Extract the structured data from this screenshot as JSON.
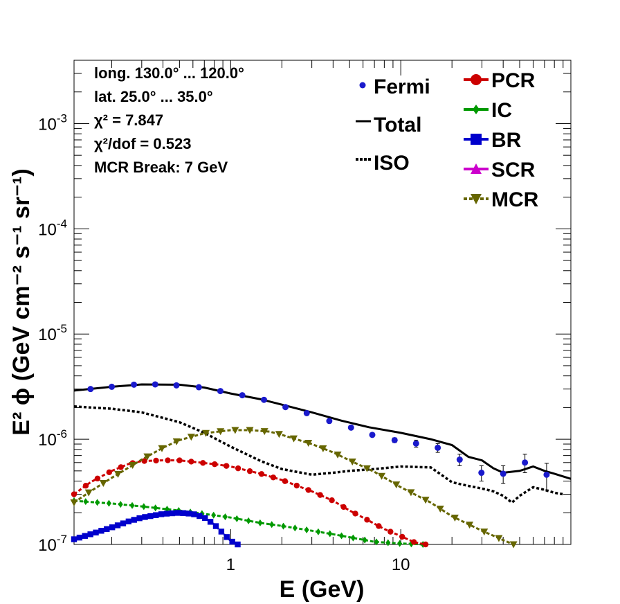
{
  "chart_data": {
    "type": "scatter",
    "x_scale": "log",
    "y_scale": "log",
    "xlim": [
      0.12,
      100
    ],
    "ylim": [
      1e-07,
      0.004
    ],
    "xlabel": "E (GeV)",
    "ylabel": "E² ϕ (GeV cm⁻² s⁻¹ sr⁻¹)",
    "x_tick_labels": [
      {
        "value": 1,
        "label": "1"
      },
      {
        "value": 10,
        "label": "10"
      }
    ],
    "y_tick_labels": [
      {
        "value": 1e-07,
        "base": "10",
        "exp": "-7"
      },
      {
        "value": 1e-06,
        "base": "10",
        "exp": "-6"
      },
      {
        "value": 1e-05,
        "base": "10",
        "exp": "-5"
      },
      {
        "value": 0.0001,
        "base": "10",
        "exp": "-4"
      },
      {
        "value": 0.001,
        "base": "10",
        "exp": "-3"
      }
    ],
    "info_lines": [
      "long. 130.0° ... 120.0°",
      "lat. 25.0° ... 35.0°",
      "χ² = 7.847",
      "χ²/dof = 0.523",
      "MCR Break:  7 GeV"
    ],
    "legend_left": [
      {
        "label": "Fermi",
        "style": "marker"
      },
      {
        "label": "Total",
        "style": "solid"
      },
      {
        "label": "ISO",
        "style": "dotted"
      }
    ],
    "legend_right": [
      {
        "label": "PCR",
        "color": "#cc0000",
        "marker": "circle"
      },
      {
        "label": "IC",
        "color": "#009900",
        "marker": "diamond"
      },
      {
        "label": "BR",
        "color": "#0000cc",
        "marker": "square"
      },
      {
        "label": "SCR",
        "color": "#cc00cc",
        "marker": "triangle-up"
      },
      {
        "label": "MCR",
        "color": "#666600",
        "marker": "triangle-down"
      }
    ],
    "colors": {
      "fermi": "#1a1acc",
      "total": "#000000",
      "iso": "#000000",
      "pcr": "#cc0000",
      "ic": "#009900",
      "br": "#0000cc",
      "mcr": "#666600"
    },
    "fermi": {
      "x": [
        0.15,
        0.2,
        0.27,
        0.36,
        0.48,
        0.65,
        0.87,
        1.17,
        1.57,
        2.1,
        2.8,
        3.8,
        5.1,
        6.8,
        9.2,
        12.3,
        16.5,
        22.2,
        29.8,
        40,
        53.7,
        72
      ],
      "y": [
        3e-06,
        3.15e-06,
        3.3e-06,
        3.32e-06,
        3.25e-06,
        3.12e-06,
        2.87e-06,
        2.62e-06,
        2.37e-06,
        2.02e-06,
        1.77e-06,
        1.49e-06,
        1.29e-06,
        1.1e-06,
        9.8e-07,
        9.1e-07,
        8.3e-07,
        6.4e-07,
        4.8e-07,
        4.7e-07,
        6e-07,
        4.6e-07
      ],
      "err": [
        6e-08,
        6e-08,
        6e-08,
        6e-08,
        6e-08,
        6e-08,
        5e-08,
        5e-08,
        5e-08,
        4e-08,
        4e-08,
        4e-08,
        4e-08,
        4e-08,
        5e-08,
        7e-08,
        8e-08,
        8e-08,
        8e-08,
        9e-08,
        1.2e-07,
        1.3e-07
      ]
    },
    "series": [
      {
        "key": "total",
        "style": "solid",
        "x": [
          0.12,
          0.2,
          0.3,
          0.5,
          0.7,
          1.0,
          1.5,
          2.0,
          3.0,
          4.5,
          6.5,
          10,
          15,
          20,
          25,
          30,
          35,
          40,
          50,
          60,
          70,
          80,
          100
        ],
        "y": [
          2.9e-06,
          3.15e-06,
          3.32e-06,
          3.3e-06,
          3.1e-06,
          2.72e-06,
          2.4e-06,
          2.13e-06,
          1.8e-06,
          1.5e-06,
          1.3e-06,
          1.15e-06,
          1e-06,
          8.8e-07,
          6.8e-07,
          6.3e-07,
          5.3e-07,
          4.8e-07,
          5e-07,
          5.5e-07,
          5e-07,
          4.7e-07,
          4.2e-07
        ]
      },
      {
        "key": "iso",
        "style": "dotted",
        "x": [
          0.12,
          0.2,
          0.3,
          0.5,
          0.7,
          1.0,
          1.5,
          2.0,
          3.0,
          4.0,
          5.0,
          7.0,
          10,
          15,
          20,
          25,
          30,
          35,
          40,
          45,
          50,
          60,
          70,
          80,
          90
        ],
        "y": [
          2.05e-06,
          1.95e-06,
          1.8e-06,
          1.45e-06,
          1.15e-06,
          8.5e-07,
          6.2e-07,
          5.2e-07,
          4.6e-07,
          4.8e-07,
          5e-07,
          5.2e-07,
          5.5e-07,
          5.4e-07,
          3.9e-07,
          3.6e-07,
          3.4e-07,
          3.2e-07,
          2.9e-07,
          2.5e-07,
          2.9e-07,
          3.5e-07,
          3.3e-07,
          3.1e-07,
          3e-07
        ]
      },
      {
        "key": "pcr",
        "style": "marked",
        "marker": "circle",
        "x": [
          0.12,
          0.15,
          0.2,
          0.25,
          0.3,
          0.4,
          0.5,
          0.6,
          0.8,
          1.0,
          1.5,
          2.0,
          3.0,
          4.0,
          5.0,
          6.0,
          8.0,
          10,
          12,
          14
        ],
        "y": [
          3e-07,
          3.9e-07,
          5e-07,
          5.8e-07,
          6.2e-07,
          6.3e-07,
          6.3e-07,
          6.1e-07,
          5.8e-07,
          5.5e-07,
          4.7e-07,
          4.1e-07,
          3.2e-07,
          2.6e-07,
          2.1e-07,
          1.8e-07,
          1.4e-07,
          1.2e-07,
          1.05e-07,
          1e-07
        ]
      },
      {
        "key": "ic",
        "style": "marked",
        "marker": "diamond",
        "x": [
          0.12,
          0.2,
          0.3,
          0.5,
          0.7,
          1.0,
          1.5,
          2.0,
          3.0,
          4.0,
          5.0,
          7.0,
          10,
          12,
          13.5
        ],
        "y": [
          2.6e-07,
          2.45e-07,
          2.3e-07,
          2.1e-07,
          1.95e-07,
          1.8e-07,
          1.6e-07,
          1.5e-07,
          1.35e-07,
          1.25e-07,
          1.17e-07,
          1.06e-07,
          1.02e-07,
          1.01e-07,
          1e-07
        ]
      },
      {
        "key": "br",
        "style": "marked",
        "marker": "square",
        "x": [
          0.12,
          0.15,
          0.2,
          0.25,
          0.3,
          0.4,
          0.5,
          0.6,
          0.7,
          0.8,
          0.9,
          1.0,
          1.1
        ],
        "y": [
          1.12e-07,
          1.25e-07,
          1.45e-07,
          1.65e-07,
          1.8e-07,
          1.95e-07,
          2e-07,
          1.95e-07,
          1.8e-07,
          1.55e-07,
          1.28e-07,
          1.08e-07,
          1e-07
        ]
      },
      {
        "key": "mcr",
        "style": "marked",
        "marker": "triangle-down",
        "x": [
          0.12,
          0.15,
          0.2,
          0.3,
          0.4,
          0.5,
          0.7,
          1.0,
          1.3,
          1.7,
          2.0,
          3.0,
          4.0,
          5.0,
          7.0,
          10,
          15,
          20,
          30,
          40,
          46
        ],
        "y": [
          2.5e-07,
          3.2e-07,
          4.3e-07,
          6.4e-07,
          8.3e-07,
          9.8e-07,
          1.14e-06,
          1.22e-06,
          1.22e-06,
          1.18e-06,
          1.1e-06,
          9e-07,
          7.5e-07,
          6.3e-07,
          4.9e-07,
          3.5e-07,
          2.5e-07,
          1.85e-07,
          1.35e-07,
          1.1e-07,
          1e-07
        ]
      }
    ]
  }
}
